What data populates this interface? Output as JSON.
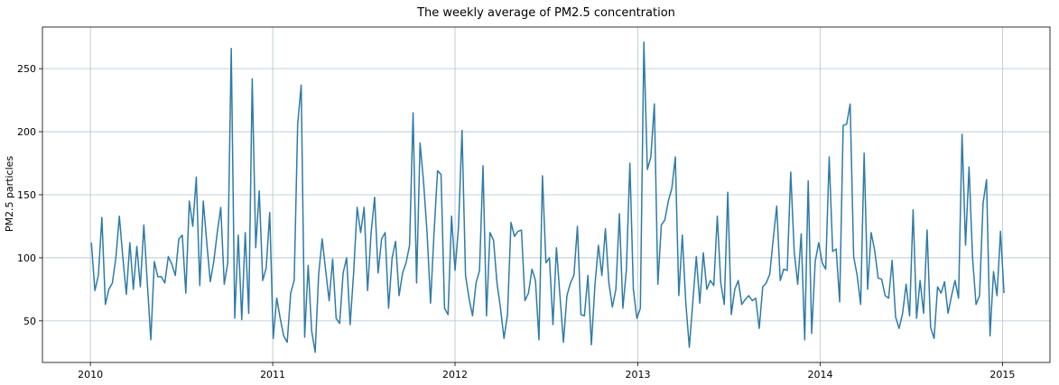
{
  "chart_data": {
    "type": "line",
    "title": "The weekly average of PM2.5 concentration",
    "xlabel": "",
    "ylabel": "PM2.5 particles",
    "x_ticks": [
      "2010",
      "2011",
      "2012",
      "2013",
      "2014",
      "2015"
    ],
    "y_ticks": [
      50,
      100,
      150,
      200,
      250
    ],
    "xlim": [
      "2009-09-27",
      "2015-04-06"
    ],
    "ylim": [
      17,
      283
    ],
    "grid": true,
    "line_color": "#2f7ba6",
    "series": [
      {
        "x_start": "2010-01-03",
        "x_step_days": 7,
        "values": [
          112,
          74,
          86,
          132,
          63,
          75,
          80,
          100,
          133,
          100,
          71,
          112,
          75,
          109,
          77,
          126,
          80,
          35,
          97,
          85,
          85,
          80,
          101,
          95,
          86,
          115,
          118,
          72,
          145,
          125,
          164,
          78,
          145,
          112,
          81,
          97,
          120,
          140,
          79,
          96,
          266,
          52,
          118,
          51,
          120,
          56,
          242,
          108,
          153,
          82,
          92,
          136,
          36,
          68,
          52,
          38,
          33,
          72,
          82,
          206,
          237,
          37,
          94,
          42,
          25,
          87,
          115,
          90,
          66,
          99,
          52,
          48,
          88,
          100,
          47,
          88,
          140,
          120,
          140,
          74,
          120,
          148,
          88,
          115,
          120,
          60,
          100,
          113,
          70,
          88,
          96,
          110,
          215,
          80,
          191,
          160,
          120,
          64,
          120,
          169,
          166,
          60,
          55,
          133,
          90,
          125,
          201,
          86,
          68,
          54,
          80,
          90,
          173,
          54,
          120,
          114,
          80,
          60,
          36,
          55,
          128,
          117,
          121,
          122,
          66,
          72,
          91,
          82,
          35,
          165,
          96,
          100,
          47,
          108,
          70,
          33,
          70,
          80,
          86,
          125,
          55,
          54,
          86,
          31,
          78,
          110,
          86,
          123,
          80,
          61,
          75,
          135,
          60,
          90,
          175,
          75,
          52,
          60,
          271,
          170,
          180,
          222,
          79,
          126,
          130,
          145,
          155,
          180,
          70,
          118,
          64,
          29,
          65,
          101,
          64,
          104,
          75,
          82,
          78,
          133,
          80,
          63,
          152,
          55,
          75,
          82,
          63,
          67,
          70,
          66,
          68,
          44,
          77,
          80,
          87,
          115,
          141,
          82,
          91,
          90,
          168,
          105,
          79,
          119,
          35,
          161,
          40,
          97,
          112,
          96,
          91,
          180,
          105,
          107,
          65,
          205,
          206,
          222,
          101,
          86,
          63,
          183,
          75,
          120,
          106,
          84,
          83,
          70,
          68,
          98,
          53,
          44,
          56,
          79,
          54,
          138,
          52,
          82,
          56,
          122,
          45,
          36,
          77,
          72,
          81,
          56,
          70,
          82,
          68,
          198,
          110,
          172,
          100,
          63,
          70,
          143,
          162,
          38,
          89,
          70,
          121,
          72
        ]
      }
    ]
  }
}
